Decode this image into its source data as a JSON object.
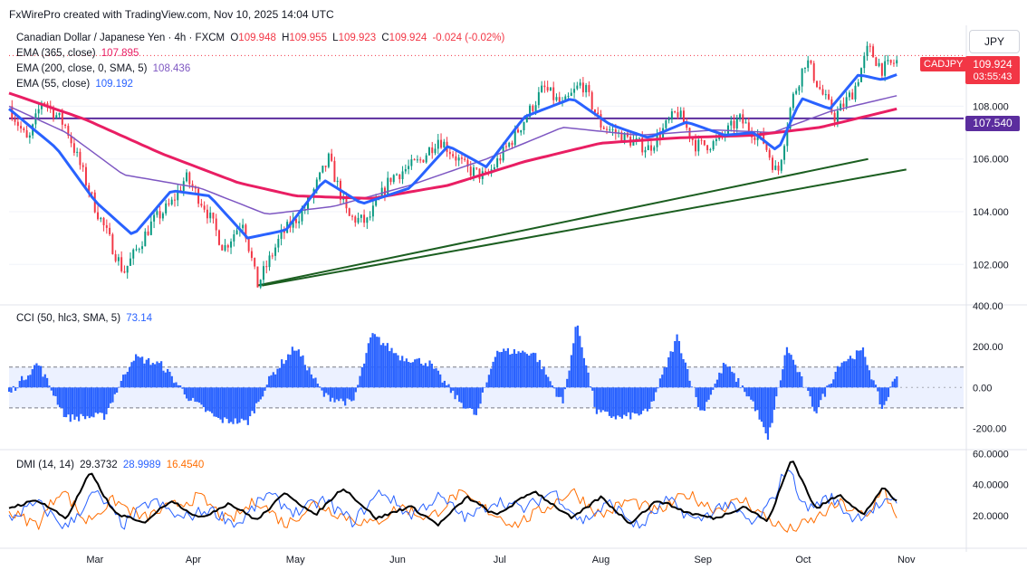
{
  "credit": "FxWirePro created with TradingView.com, Nov 10, 2025 14:04 UTC",
  "instrument": {
    "name": "Canadian Dollar / Japanese Yen · 4h · FXCM",
    "o_label": "O",
    "o": "109.948",
    "h_label": "H",
    "h": "109.955",
    "l_label": "L",
    "l": "109.923",
    "c_label": "C",
    "c": "109.924",
    "change": "-0.024 (-0.02%)"
  },
  "indicators": {
    "ema365": {
      "label": "EMA (365, close)",
      "value": "107.895",
      "color": "#e91e63"
    },
    "ema200": {
      "label": "EMA (200, close, 0, SMA, 5)",
      "value": "108.436",
      "color": "#7e57c2"
    },
    "ema55": {
      "label": "EMA (55, close)",
      "value": "109.192",
      "color": "#2962ff"
    }
  },
  "currency_button": "JPY",
  "ticker_tag": "CADJPY",
  "price_tag": {
    "price": "109.924",
    "countdown": "03:55:43"
  },
  "hline_tag": "107.540",
  "colors": {
    "up": "#089981",
    "down": "#f23645",
    "cci": "#2962ff",
    "trend": "#1b5e20",
    "hline": "#5b2d9e",
    "dmi_adx": "#000000",
    "dmi_plus": "#2962ff",
    "dmi_minus": "#ff6d00"
  },
  "cci": {
    "label": "CCI (50, hlc3, SMA, 5)",
    "value": "73.14"
  },
  "dmi": {
    "label": "DMI (14, 14)",
    "adx": "29.3732",
    "plus": "28.9989",
    "minus": "16.4540"
  },
  "chart_data": [
    {
      "type": "candlestick",
      "title": "Canadian Dollar / Japanese Yen · 4h · FXCM",
      "x": [
        "Mar",
        "Apr",
        "May",
        "Jun",
        "Jul",
        "Aug",
        "Sep",
        "Oct",
        "Nov"
      ],
      "price_anchors": [
        {
          "x": 0.0,
          "y": 108.0
        },
        {
          "x": 0.02,
          "y": 106.6
        },
        {
          "x": 0.035,
          "y": 108.3
        },
        {
          "x": 0.06,
          "y": 107.2
        },
        {
          "x": 0.09,
          "y": 104.2
        },
        {
          "x": 0.12,
          "y": 101.7
        },
        {
          "x": 0.15,
          "y": 103.6
        },
        {
          "x": 0.17,
          "y": 104.3
        },
        {
          "x": 0.185,
          "y": 105.3
        },
        {
          "x": 0.205,
          "y": 104.2
        },
        {
          "x": 0.225,
          "y": 102.6
        },
        {
          "x": 0.245,
          "y": 103.7
        },
        {
          "x": 0.26,
          "y": 101.2
        },
        {
          "x": 0.285,
          "y": 103.1
        },
        {
          "x": 0.31,
          "y": 104.1
        },
        {
          "x": 0.335,
          "y": 106.0
        },
        {
          "x": 0.355,
          "y": 103.8
        },
        {
          "x": 0.375,
          "y": 103.6
        },
        {
          "x": 0.4,
          "y": 105.3
        },
        {
          "x": 0.43,
          "y": 105.9
        },
        {
          "x": 0.45,
          "y": 106.8
        },
        {
          "x": 0.48,
          "y": 105.6
        },
        {
          "x": 0.5,
          "y": 105.3
        },
        {
          "x": 0.53,
          "y": 106.9
        },
        {
          "x": 0.56,
          "y": 108.7
        },
        {
          "x": 0.58,
          "y": 108.0
        },
        {
          "x": 0.6,
          "y": 108.9
        },
        {
          "x": 0.62,
          "y": 107.3
        },
        {
          "x": 0.645,
          "y": 106.8
        },
        {
          "x": 0.67,
          "y": 106.4
        },
        {
          "x": 0.7,
          "y": 107.8
        },
        {
          "x": 0.72,
          "y": 106.5
        },
        {
          "x": 0.74,
          "y": 106.6
        },
        {
          "x": 0.765,
          "y": 107.5
        },
        {
          "x": 0.79,
          "y": 106.7
        },
        {
          "x": 0.805,
          "y": 105.4
        },
        {
          "x": 0.82,
          "y": 108.2
        },
        {
          "x": 0.835,
          "y": 109.8
        },
        {
          "x": 0.85,
          "y": 108.6
        },
        {
          "x": 0.865,
          "y": 107.6
        },
        {
          "x": 0.885,
          "y": 108.6
        },
        {
          "x": 0.9,
          "y": 110.2
        },
        {
          "x": 0.915,
          "y": 109.4
        },
        {
          "x": 0.93,
          "y": 109.7
        }
      ],
      "ema365": [
        {
          "x": 0.0,
          "y": 108.5
        },
        {
          "x": 0.08,
          "y": 107.5
        },
        {
          "x": 0.16,
          "y": 106.2
        },
        {
          "x": 0.24,
          "y": 105.1
        },
        {
          "x": 0.3,
          "y": 104.6
        },
        {
          "x": 0.38,
          "y": 104.5
        },
        {
          "x": 0.46,
          "y": 105.0
        },
        {
          "x": 0.54,
          "y": 105.9
        },
        {
          "x": 0.62,
          "y": 106.6
        },
        {
          "x": 0.7,
          "y": 106.8
        },
        {
          "x": 0.78,
          "y": 106.9
        },
        {
          "x": 0.85,
          "y": 107.2
        },
        {
          "x": 0.93,
          "y": 107.9
        }
      ],
      "ema200": [
        {
          "x": 0.0,
          "y": 108.0
        },
        {
          "x": 0.06,
          "y": 107.0
        },
        {
          "x": 0.12,
          "y": 105.4
        },
        {
          "x": 0.2,
          "y": 104.9
        },
        {
          "x": 0.27,
          "y": 103.9
        },
        {
          "x": 0.34,
          "y": 104.2
        },
        {
          "x": 0.42,
          "y": 105.0
        },
        {
          "x": 0.5,
          "y": 106.0
        },
        {
          "x": 0.58,
          "y": 107.2
        },
        {
          "x": 0.66,
          "y": 106.9
        },
        {
          "x": 0.74,
          "y": 107.1
        },
        {
          "x": 0.8,
          "y": 107.0
        },
        {
          "x": 0.86,
          "y": 107.8
        },
        {
          "x": 0.93,
          "y": 108.4
        }
      ],
      "ema55": [
        {
          "x": 0.0,
          "y": 107.9
        },
        {
          "x": 0.05,
          "y": 106.4
        },
        {
          "x": 0.09,
          "y": 104.4
        },
        {
          "x": 0.13,
          "y": 103.1
        },
        {
          "x": 0.17,
          "y": 104.8
        },
        {
          "x": 0.21,
          "y": 104.6
        },
        {
          "x": 0.25,
          "y": 103.0
        },
        {
          "x": 0.29,
          "y": 103.3
        },
        {
          "x": 0.33,
          "y": 105.2
        },
        {
          "x": 0.37,
          "y": 104.3
        },
        {
          "x": 0.42,
          "y": 104.9
        },
        {
          "x": 0.46,
          "y": 106.5
        },
        {
          "x": 0.5,
          "y": 105.7
        },
        {
          "x": 0.54,
          "y": 107.6
        },
        {
          "x": 0.59,
          "y": 108.3
        },
        {
          "x": 0.63,
          "y": 107.3
        },
        {
          "x": 0.67,
          "y": 106.8
        },
        {
          "x": 0.71,
          "y": 107.4
        },
        {
          "x": 0.75,
          "y": 106.9
        },
        {
          "x": 0.78,
          "y": 107.0
        },
        {
          "x": 0.805,
          "y": 106.3
        },
        {
          "x": 0.83,
          "y": 108.3
        },
        {
          "x": 0.86,
          "y": 107.9
        },
        {
          "x": 0.89,
          "y": 109.2
        },
        {
          "x": 0.915,
          "y": 109.0
        },
        {
          "x": 0.93,
          "y": 109.2
        }
      ],
      "hline": 107.54,
      "trendlines": [
        {
          "from": {
            "x": 0.26,
            "y": 101.2
          },
          "to": {
            "x": 0.9,
            "y": 106.0
          }
        },
        {
          "from": {
            "x": 0.265,
            "y": 101.2
          },
          "to": {
            "x": 0.94,
            "y": 105.6
          }
        }
      ],
      "y_ticks": [
        "102.000",
        "104.000",
        "106.000",
        "108.000"
      ],
      "ylim": [
        100.5,
        111.0
      ]
    },
    {
      "type": "area",
      "title": "CCI (50, hlc3, SMA, 5)",
      "bands": [
        -100,
        100
      ],
      "anchors": [
        {
          "x": 0.0,
          "y": -30
        },
        {
          "x": 0.03,
          "y": 120
        },
        {
          "x": 0.06,
          "y": -150
        },
        {
          "x": 0.1,
          "y": -140
        },
        {
          "x": 0.13,
          "y": 150
        },
        {
          "x": 0.16,
          "y": 110
        },
        {
          "x": 0.19,
          "y": -60
        },
        {
          "x": 0.22,
          "y": -160
        },
        {
          "x": 0.25,
          "y": -170
        },
        {
          "x": 0.275,
          "y": 60
        },
        {
          "x": 0.3,
          "y": 200
        },
        {
          "x": 0.33,
          "y": -40
        },
        {
          "x": 0.36,
          "y": -80
        },
        {
          "x": 0.38,
          "y": 260
        },
        {
          "x": 0.41,
          "y": 150
        },
        {
          "x": 0.44,
          "y": 120
        },
        {
          "x": 0.47,
          "y": -60
        },
        {
          "x": 0.49,
          "y": -140
        },
        {
          "x": 0.51,
          "y": 180
        },
        {
          "x": 0.55,
          "y": 170
        },
        {
          "x": 0.58,
          "y": -80
        },
        {
          "x": 0.595,
          "y": 320
        },
        {
          "x": 0.615,
          "y": -120
        },
        {
          "x": 0.64,
          "y": -150
        },
        {
          "x": 0.67,
          "y": -120
        },
        {
          "x": 0.7,
          "y": 250
        },
        {
          "x": 0.725,
          "y": -130
        },
        {
          "x": 0.75,
          "y": 120
        },
        {
          "x": 0.78,
          "y": -80
        },
        {
          "x": 0.795,
          "y": -260
        },
        {
          "x": 0.815,
          "y": 200
        },
        {
          "x": 0.845,
          "y": -120
        },
        {
          "x": 0.87,
          "y": 120
        },
        {
          "x": 0.895,
          "y": 180
        },
        {
          "x": 0.915,
          "y": -110
        },
        {
          "x": 0.93,
          "y": 73
        }
      ],
      "y_ticks": [
        "400.00",
        "200.00",
        "0.00",
        "-200.00"
      ],
      "ylim": [
        -300,
        400
      ]
    },
    {
      "type": "line",
      "title": "DMI (14, 14)",
      "adx": [
        {
          "x": 0.0,
          "y": 25
        },
        {
          "x": 0.03,
          "y": 30
        },
        {
          "x": 0.06,
          "y": 18
        },
        {
          "x": 0.085,
          "y": 48
        },
        {
          "x": 0.11,
          "y": 22
        },
        {
          "x": 0.14,
          "y": 15
        },
        {
          "x": 0.17,
          "y": 30
        },
        {
          "x": 0.2,
          "y": 18
        },
        {
          "x": 0.23,
          "y": 28
        },
        {
          "x": 0.26,
          "y": 17
        },
        {
          "x": 0.29,
          "y": 35
        },
        {
          "x": 0.32,
          "y": 20
        },
        {
          "x": 0.35,
          "y": 38
        },
        {
          "x": 0.385,
          "y": 18
        },
        {
          "x": 0.42,
          "y": 26
        },
        {
          "x": 0.45,
          "y": 14
        },
        {
          "x": 0.48,
          "y": 32
        },
        {
          "x": 0.51,
          "y": 20
        },
        {
          "x": 0.55,
          "y": 36
        },
        {
          "x": 0.59,
          "y": 18
        },
        {
          "x": 0.62,
          "y": 32
        },
        {
          "x": 0.65,
          "y": 15
        },
        {
          "x": 0.68,
          "y": 30
        },
        {
          "x": 0.71,
          "y": 22
        },
        {
          "x": 0.74,
          "y": 18
        },
        {
          "x": 0.77,
          "y": 26
        },
        {
          "x": 0.795,
          "y": 16
        },
        {
          "x": 0.82,
          "y": 57
        },
        {
          "x": 0.845,
          "y": 24
        },
        {
          "x": 0.87,
          "y": 34
        },
        {
          "x": 0.895,
          "y": 20
        },
        {
          "x": 0.915,
          "y": 38
        },
        {
          "x": 0.93,
          "y": 29
        }
      ],
      "plus_di": [
        {
          "x": 0.0,
          "y": 18
        },
        {
          "x": 0.03,
          "y": 28
        },
        {
          "x": 0.06,
          "y": 12
        },
        {
          "x": 0.09,
          "y": 35
        },
        {
          "x": 0.12,
          "y": 14
        },
        {
          "x": 0.15,
          "y": 30
        },
        {
          "x": 0.18,
          "y": 18
        },
        {
          "x": 0.21,
          "y": 24
        },
        {
          "x": 0.24,
          "y": 14
        },
        {
          "x": 0.27,
          "y": 34
        },
        {
          "x": 0.3,
          "y": 22
        },
        {
          "x": 0.33,
          "y": 30
        },
        {
          "x": 0.36,
          "y": 16
        },
        {
          "x": 0.39,
          "y": 36
        },
        {
          "x": 0.42,
          "y": 20
        },
        {
          "x": 0.45,
          "y": 32
        },
        {
          "x": 0.48,
          "y": 18
        },
        {
          "x": 0.51,
          "y": 30
        },
        {
          "x": 0.54,
          "y": 24
        },
        {
          "x": 0.57,
          "y": 36
        },
        {
          "x": 0.6,
          "y": 16
        },
        {
          "x": 0.63,
          "y": 28
        },
        {
          "x": 0.66,
          "y": 12
        },
        {
          "x": 0.69,
          "y": 30
        },
        {
          "x": 0.72,
          "y": 16
        },
        {
          "x": 0.75,
          "y": 28
        },
        {
          "x": 0.78,
          "y": 14
        },
        {
          "x": 0.8,
          "y": 30
        },
        {
          "x": 0.815,
          "y": 52
        },
        {
          "x": 0.835,
          "y": 24
        },
        {
          "x": 0.86,
          "y": 32
        },
        {
          "x": 0.885,
          "y": 18
        },
        {
          "x": 0.91,
          "y": 26
        },
        {
          "x": 0.93,
          "y": 29
        }
      ],
      "minus_di": [
        {
          "x": 0.0,
          "y": 22
        },
        {
          "x": 0.03,
          "y": 14
        },
        {
          "x": 0.055,
          "y": 38
        },
        {
          "x": 0.08,
          "y": 16
        },
        {
          "x": 0.11,
          "y": 30
        },
        {
          "x": 0.14,
          "y": 18
        },
        {
          "x": 0.17,
          "y": 26
        },
        {
          "x": 0.2,
          "y": 32
        },
        {
          "x": 0.23,
          "y": 16
        },
        {
          "x": 0.26,
          "y": 30
        },
        {
          "x": 0.29,
          "y": 14
        },
        {
          "x": 0.32,
          "y": 28
        },
        {
          "x": 0.35,
          "y": 20
        },
        {
          "x": 0.38,
          "y": 14
        },
        {
          "x": 0.41,
          "y": 26
        },
        {
          "x": 0.44,
          "y": 18
        },
        {
          "x": 0.47,
          "y": 34
        },
        {
          "x": 0.5,
          "y": 24
        },
        {
          "x": 0.53,
          "y": 14
        },
        {
          "x": 0.56,
          "y": 24
        },
        {
          "x": 0.59,
          "y": 36
        },
        {
          "x": 0.62,
          "y": 20
        },
        {
          "x": 0.65,
          "y": 30
        },
        {
          "x": 0.68,
          "y": 22
        },
        {
          "x": 0.71,
          "y": 34
        },
        {
          "x": 0.74,
          "y": 24
        },
        {
          "x": 0.77,
          "y": 30
        },
        {
          "x": 0.79,
          "y": 20
        },
        {
          "x": 0.815,
          "y": 10
        },
        {
          "x": 0.84,
          "y": 16
        },
        {
          "x": 0.87,
          "y": 28
        },
        {
          "x": 0.9,
          "y": 18
        },
        {
          "x": 0.915,
          "y": 40
        },
        {
          "x": 0.93,
          "y": 16
        }
      ],
      "y_ticks": [
        "60.0000",
        "40.0000",
        "20.0000"
      ],
      "ylim": [
        0,
        62
      ]
    }
  ]
}
